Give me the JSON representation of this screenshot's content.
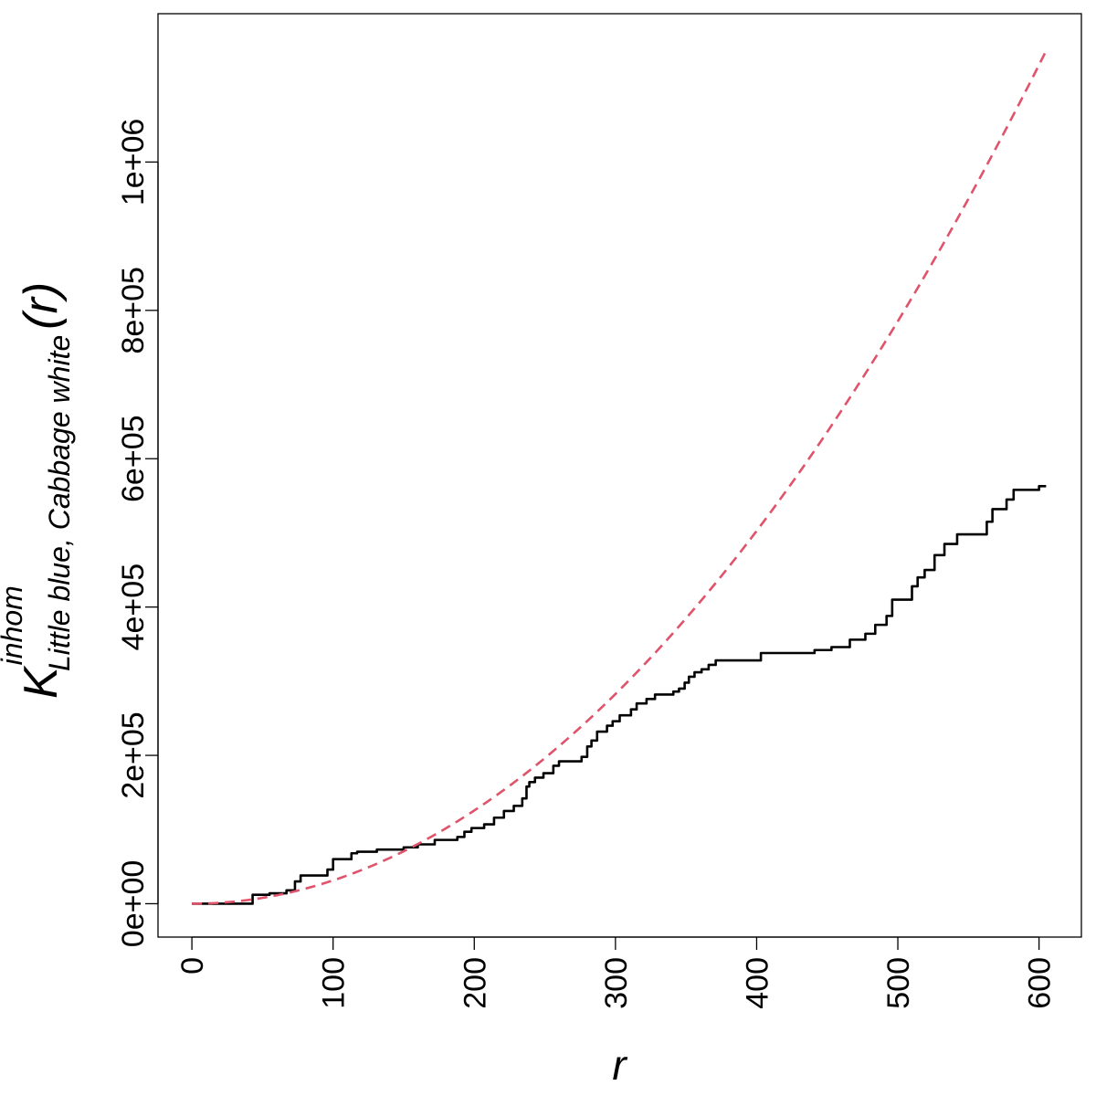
{
  "chart_data": {
    "type": "line",
    "title": "",
    "xlabel": "r",
    "ylabel": {
      "main": "K",
      "superscript": "inhom",
      "subscript": "Little blue, Cabbage white",
      "argument": "(r)"
    },
    "xlim": [
      -24,
      630
    ],
    "ylim": [
      -45000,
      1200000
    ],
    "x_ticks": [
      0,
      100,
      200,
      300,
      400,
      500,
      600
    ],
    "x_tick_labels": [
      "0",
      "100",
      "200",
      "300",
      "400",
      "500",
      "600"
    ],
    "y_ticks": [
      0,
      200000,
      400000,
      600000,
      800000,
      1000000
    ],
    "y_tick_labels": [
      "0e+00",
      "2e+05",
      "4e+05",
      "6e+05",
      "8e+05",
      "1e+06"
    ],
    "grid": false,
    "legend": "none",
    "series": [
      {
        "style": "solid",
        "color": "#000000",
        "points": [
          [
            0,
            0
          ],
          [
            43,
            0
          ],
          [
            43,
            12000
          ],
          [
            55,
            12000
          ],
          [
            55,
            14000
          ],
          [
            67,
            14000
          ],
          [
            67,
            18000
          ],
          [
            73,
            18000
          ],
          [
            73,
            30000
          ],
          [
            77,
            30000
          ],
          [
            77,
            38000
          ],
          [
            96,
            38000
          ],
          [
            96,
            46000
          ],
          [
            100,
            46000
          ],
          [
            100,
            60000
          ],
          [
            113,
            60000
          ],
          [
            113,
            68000
          ],
          [
            117,
            68000
          ],
          [
            117,
            70000
          ],
          [
            131,
            70000
          ],
          [
            131,
            73000
          ],
          [
            150,
            73000
          ],
          [
            150,
            76000
          ],
          [
            160,
            76000
          ],
          [
            160,
            80000
          ],
          [
            172,
            80000
          ],
          [
            172,
            86000
          ],
          [
            188,
            86000
          ],
          [
            188,
            90000
          ],
          [
            193,
            90000
          ],
          [
            193,
            97000
          ],
          [
            198,
            97000
          ],
          [
            198,
            102000
          ],
          [
            207,
            102000
          ],
          [
            207,
            107000
          ],
          [
            214,
            107000
          ],
          [
            214,
            116000
          ],
          [
            221,
            116000
          ],
          [
            221,
            125000
          ],
          [
            228,
            125000
          ],
          [
            228,
            132000
          ],
          [
            234,
            132000
          ],
          [
            234,
            142000
          ],
          [
            237,
            142000
          ],
          [
            237,
            158000
          ],
          [
            239,
            158000
          ],
          [
            239,
            164000
          ],
          [
            243,
            164000
          ],
          [
            243,
            170000
          ],
          [
            249,
            170000
          ],
          [
            249,
            176000
          ],
          [
            256,
            176000
          ],
          [
            256,
            186000
          ],
          [
            260,
            186000
          ],
          [
            260,
            192000
          ],
          [
            276,
            192000
          ],
          [
            276,
            198000
          ],
          [
            280,
            198000
          ],
          [
            280,
            212000
          ],
          [
            283,
            212000
          ],
          [
            283,
            220000
          ],
          [
            287,
            220000
          ],
          [
            287,
            232000
          ],
          [
            294,
            232000
          ],
          [
            294,
            240000
          ],
          [
            298,
            240000
          ],
          [
            298,
            246000
          ],
          [
            303,
            246000
          ],
          [
            303,
            254000
          ],
          [
            311,
            254000
          ],
          [
            311,
            262000
          ],
          [
            315,
            262000
          ],
          [
            315,
            270000
          ],
          [
            322,
            270000
          ],
          [
            322,
            276000
          ],
          [
            328,
            276000
          ],
          [
            328,
            282000
          ],
          [
            341,
            282000
          ],
          [
            341,
            286000
          ],
          [
            345,
            286000
          ],
          [
            345,
            290000
          ],
          [
            349,
            290000
          ],
          [
            349,
            298000
          ],
          [
            352,
            298000
          ],
          [
            352,
            306000
          ],
          [
            356,
            306000
          ],
          [
            356,
            312000
          ],
          [
            361,
            312000
          ],
          [
            361,
            316000
          ],
          [
            366,
            316000
          ],
          [
            366,
            322000
          ],
          [
            371,
            322000
          ],
          [
            371,
            328000
          ],
          [
            403,
            328000
          ],
          [
            403,
            338000
          ],
          [
            441,
            338000
          ],
          [
            441,
            342000
          ],
          [
            453,
            342000
          ],
          [
            453,
            346000
          ],
          [
            466,
            346000
          ],
          [
            466,
            356000
          ],
          [
            477,
            356000
          ],
          [
            477,
            364000
          ],
          [
            484,
            364000
          ],
          [
            484,
            376000
          ],
          [
            492,
            376000
          ],
          [
            492,
            388000
          ],
          [
            496,
            388000
          ],
          [
            496,
            410000
          ],
          [
            510,
            410000
          ],
          [
            510,
            428000
          ],
          [
            514,
            428000
          ],
          [
            514,
            440000
          ],
          [
            519,
            440000
          ],
          [
            519,
            450000
          ],
          [
            526,
            450000
          ],
          [
            526,
            470000
          ],
          [
            533,
            470000
          ],
          [
            533,
            485000
          ],
          [
            542,
            485000
          ],
          [
            542,
            498000
          ],
          [
            563,
            498000
          ],
          [
            563,
            515000
          ],
          [
            567,
            515000
          ],
          [
            567,
            532000
          ],
          [
            577,
            532000
          ],
          [
            577,
            545000
          ],
          [
            582,
            545000
          ],
          [
            582,
            558000
          ],
          [
            600,
            558000
          ],
          [
            600,
            563000
          ],
          [
            605,
            563000
          ]
        ]
      },
      {
        "style": "dashed",
        "color": "#DF536B",
        "formula": "pi*r^2",
        "x_range": [
          0,
          605
        ]
      }
    ]
  }
}
